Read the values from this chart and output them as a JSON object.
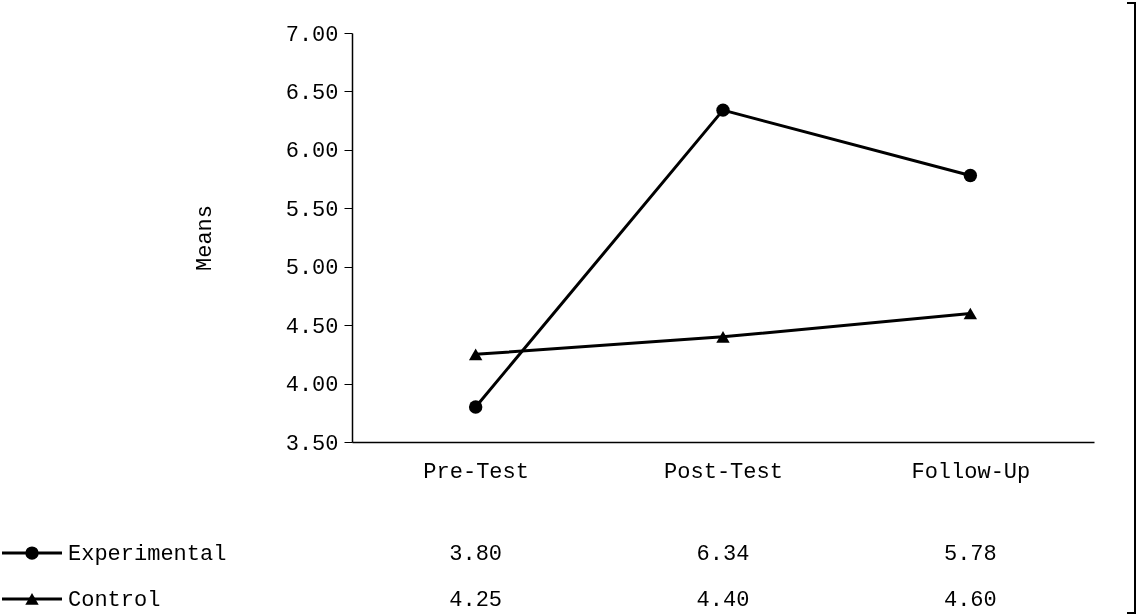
{
  "chart_data": {
    "type": "line",
    "ylabel": "Means",
    "categories": [
      "Pre-Test",
      "Post-Test",
      "Follow-Up"
    ],
    "series": [
      {
        "name": "Experimental",
        "color": "#000000",
        "marker": "circle",
        "values": [
          3.8,
          6.34,
          5.78
        ],
        "value_labels": [
          "3.80",
          "6.34",
          "5.78"
        ]
      },
      {
        "name": "Control",
        "color": "#000000",
        "marker": "triangle",
        "values": [
          4.25,
          4.4,
          4.6
        ],
        "value_labels": [
          "4.25",
          "4.40",
          "4.60"
        ]
      }
    ],
    "ylim": [
      3.5,
      7
    ],
    "yticks": [
      {
        "value": 3.5,
        "label": "3.50"
      },
      {
        "value": 4,
        "label": "4.00"
      },
      {
        "value": 4.5,
        "label": "4.50"
      },
      {
        "value": 5,
        "label": "5.00"
      },
      {
        "value": 5.5,
        "label": "5.50"
      },
      {
        "value": 6,
        "label": "6.00"
      },
      {
        "value": 6.5,
        "label": "6.50"
      },
      {
        "value": 7,
        "label": "7.00"
      }
    ],
    "grid": false,
    "legend": "bottom left",
    "line_style": "solid"
  }
}
